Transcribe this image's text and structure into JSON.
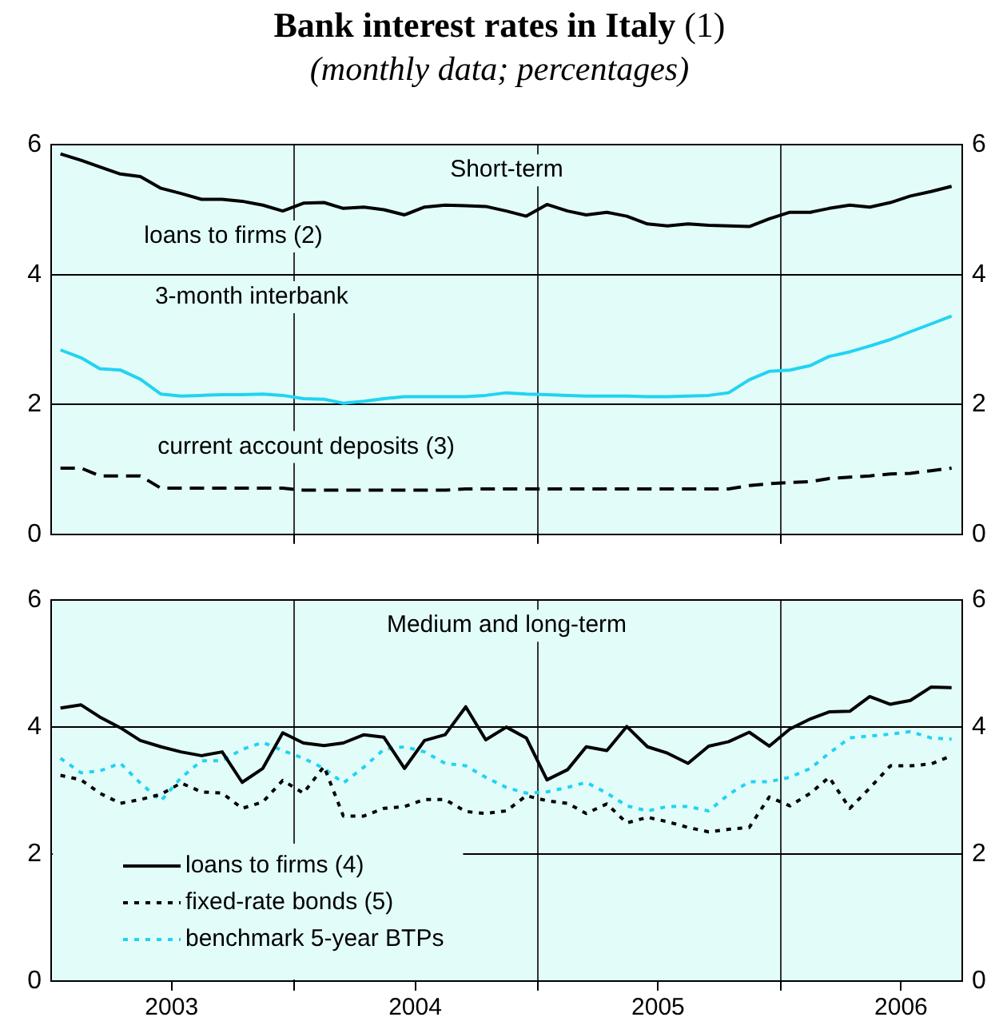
{
  "chart_data": [
    {
      "type": "line",
      "title": "Bank interest rates in Italy (1)",
      "subtitle": "(monthly data; percentages)",
      "annotations": [
        "Short-term"
      ],
      "x": [
        "2003-01-15",
        "2003-02-15",
        "2003-03-15",
        "2003-04-15",
        "2003-05-15",
        "2003-06-15",
        "2003-07-15",
        "2003-08-15",
        "2003-09-15",
        "2003-10-15",
        "2003-11-15",
        "2003-12-15",
        "2004-01-15",
        "2004-02-15",
        "2004-03-15",
        "2004-04-15",
        "2004-05-15",
        "2004-06-15",
        "2004-07-15",
        "2004-08-15",
        "2004-09-15",
        "2004-10-15",
        "2004-11-15",
        "2004-12-15",
        "2005-01-15",
        "2005-02-15",
        "2005-03-15",
        "2005-04-15",
        "2005-05-15",
        "2005-06-15",
        "2005-07-15",
        "2005-08-15",
        "2005-09-15",
        "2005-10-15",
        "2005-11-15",
        "2005-12-15",
        "2006-01-15",
        "2006-02-15",
        "2006-03-15",
        "2006-04-15",
        "2006-05-15",
        "2006-06-15",
        "2006-07-15",
        "2006-08-15",
        "2006-09-15"
      ],
      "series": [
        {
          "name": "loans to firms (2)",
          "color": "#000000",
          "line_style": "solid",
          "values": [
            5.86,
            5.76,
            5.66,
            5.55,
            5.51,
            5.33,
            5.25,
            5.16,
            5.16,
            5.13,
            5.07,
            4.98,
            5.1,
            5.11,
            5.02,
            5.04,
            5.0,
            4.92,
            5.04,
            5.07,
            5.06,
            5.05,
            4.98,
            4.9,
            5.08,
            4.98,
            4.92,
            4.96,
            4.9,
            4.78,
            4.75,
            4.78,
            4.76,
            4.75,
            4.74,
            4.86,
            4.96,
            4.96,
            5.02,
            5.07,
            5.04,
            5.11,
            5.21,
            5.28,
            5.36
          ]
        },
        {
          "name": "3-month interbank",
          "color": "#22d3f2",
          "line_style": "solid",
          "values": [
            2.84,
            2.72,
            2.55,
            2.53,
            2.39,
            2.16,
            2.13,
            2.14,
            2.15,
            2.15,
            2.16,
            2.14,
            2.09,
            2.08,
            2.02,
            2.05,
            2.09,
            2.12,
            2.12,
            2.12,
            2.12,
            2.14,
            2.18,
            2.16,
            2.15,
            2.14,
            2.13,
            2.13,
            2.13,
            2.12,
            2.12,
            2.13,
            2.14,
            2.18,
            2.38,
            2.51,
            2.53,
            2.6,
            2.74,
            2.81,
            2.9,
            3.0,
            3.12,
            3.24,
            3.36
          ]
        },
        {
          "name": "current account deposits (3)",
          "color": "#000000",
          "line_style": "dashed",
          "values": [
            1.02,
            1.02,
            0.9,
            0.9,
            0.9,
            0.71,
            0.71,
            0.71,
            0.71,
            0.71,
            0.71,
            0.71,
            0.68,
            0.68,
            0.68,
            0.68,
            0.68,
            0.68,
            0.68,
            0.68,
            0.7,
            0.7,
            0.7,
            0.7,
            0.7,
            0.7,
            0.7,
            0.7,
            0.7,
            0.7,
            0.7,
            0.7,
            0.7,
            0.7,
            0.75,
            0.78,
            0.8,
            0.81,
            0.86,
            0.88,
            0.9,
            0.93,
            0.94,
            0.98,
            1.02
          ]
        }
      ],
      "xlim": [
        "2003-01-01",
        "2006-10-01"
      ],
      "xticks": [
        {
          "value": "2004-01-01",
          "label": null
        },
        {
          "value": "2005-01-01",
          "label": null
        },
        {
          "value": "2006-01-01",
          "label": null
        }
      ],
      "ylim": [
        0,
        6
      ],
      "yticks": [
        0,
        2,
        4,
        6
      ],
      "y2lim": [
        0,
        6
      ],
      "y2ticks": [
        0,
        2,
        4,
        6
      ],
      "tick_labels": "y",
      "grid": true,
      "legend": false
    },
    {
      "type": "line",
      "annotations": [
        "Medium and long-term"
      ],
      "x": [
        "2003-01-15",
        "2003-02-15",
        "2003-03-15",
        "2003-04-15",
        "2003-05-15",
        "2003-06-15",
        "2003-07-15",
        "2003-08-15",
        "2003-09-15",
        "2003-10-15",
        "2003-11-15",
        "2003-12-15",
        "2004-01-15",
        "2004-02-15",
        "2004-03-15",
        "2004-04-15",
        "2004-05-15",
        "2004-06-15",
        "2004-07-15",
        "2004-08-15",
        "2004-09-15",
        "2004-10-15",
        "2004-11-15",
        "2004-12-15",
        "2005-01-15",
        "2005-02-15",
        "2005-03-15",
        "2005-04-15",
        "2005-05-15",
        "2005-06-15",
        "2005-07-15",
        "2005-08-15",
        "2005-09-15",
        "2005-10-15",
        "2005-11-15",
        "2005-12-15",
        "2006-01-15",
        "2006-02-15",
        "2006-03-15",
        "2006-04-15",
        "2006-05-15",
        "2006-06-15",
        "2006-07-15",
        "2006-08-15",
        "2006-09-15"
      ],
      "series": [
        {
          "name": "loans to firms (4)",
          "color": "#000000",
          "line_style": "solid",
          "values": [
            4.3,
            4.35,
            4.16,
            3.99,
            3.79,
            3.69,
            3.61,
            3.55,
            3.61,
            3.13,
            3.35,
            3.91,
            3.75,
            3.71,
            3.75,
            3.88,
            3.84,
            3.35,
            3.79,
            3.88,
            4.32,
            3.8,
            4.0,
            3.83,
            3.17,
            3.33,
            3.69,
            3.63,
            4.01,
            3.69,
            3.59,
            3.43,
            3.7,
            3.77,
            3.92,
            3.7,
            3.97,
            4.13,
            4.24,
            4.25,
            4.48,
            4.36,
            4.42,
            4.63,
            4.62
          ]
        },
        {
          "name": "fixed-rate bonds (5)",
          "color": "#000000",
          "line_style": "dotted",
          "values": [
            3.24,
            3.17,
            2.96,
            2.8,
            2.86,
            2.94,
            3.12,
            2.98,
            2.96,
            2.72,
            2.82,
            3.16,
            2.96,
            3.38,
            2.6,
            2.6,
            2.72,
            2.75,
            2.86,
            2.86,
            2.67,
            2.64,
            2.68,
            2.92,
            2.84,
            2.8,
            2.64,
            2.79,
            2.49,
            2.58,
            2.51,
            2.42,
            2.35,
            2.39,
            2.42,
            2.9,
            2.76,
            2.96,
            3.21,
            2.72,
            3.04,
            3.39,
            3.39,
            3.42,
            3.55
          ]
        },
        {
          "name": "benchmark 5-year BTPs",
          "color": "#22d3f2",
          "line_style": "dotted",
          "values": [
            3.51,
            3.28,
            3.31,
            3.43,
            3.12,
            2.84,
            3.2,
            3.47,
            3.47,
            3.65,
            3.76,
            3.63,
            3.51,
            3.35,
            3.12,
            3.37,
            3.65,
            3.69,
            3.61,
            3.43,
            3.39,
            3.21,
            3.05,
            2.96,
            2.98,
            3.05,
            3.13,
            2.96,
            2.76,
            2.68,
            2.75,
            2.75,
            2.68,
            2.94,
            3.14,
            3.14,
            3.21,
            3.35,
            3.59,
            3.83,
            3.86,
            3.89,
            3.93,
            3.83,
            3.81
          ]
        }
      ],
      "xlim": [
        "2003-01-01",
        "2006-10-01"
      ],
      "xticks": [
        {
          "value": "2003-07-01",
          "label": "2003"
        },
        {
          "value": "2004-01-01",
          "label": null
        },
        {
          "value": "2004-07-01",
          "label": "2004"
        },
        {
          "value": "2005-01-01",
          "label": null
        },
        {
          "value": "2005-07-01",
          "label": "2005"
        },
        {
          "value": "2006-01-01",
          "label": null
        },
        {
          "value": "2006-07-01",
          "label": "2006"
        }
      ],
      "ylim": [
        0,
        6
      ],
      "yticks": [
        0,
        2,
        4,
        6
      ],
      "y2lim": [
        0,
        6
      ],
      "y2ticks": [
        0,
        2,
        4,
        6
      ],
      "grid": true,
      "legend": "bottom left"
    }
  ]
}
